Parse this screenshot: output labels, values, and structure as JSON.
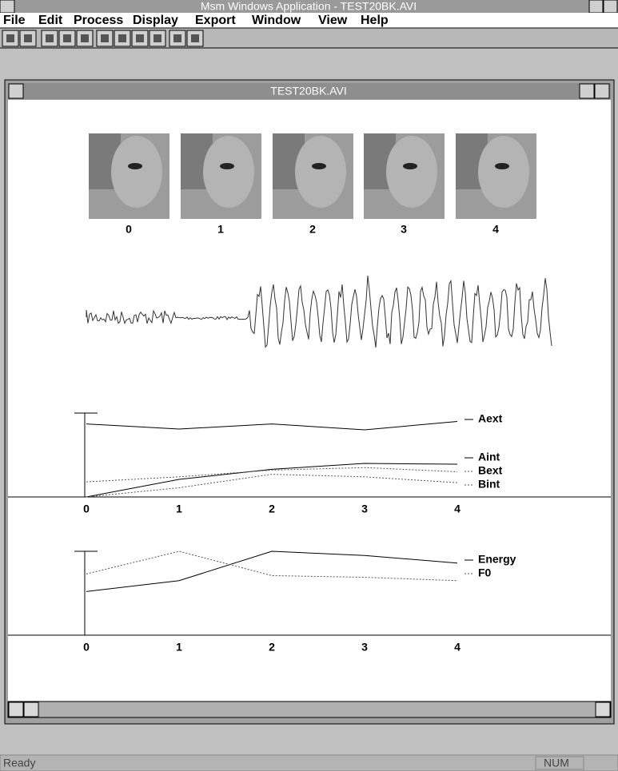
{
  "window": {
    "title": "Msm Windows Application - TEST20BK.AVI",
    "menu": [
      "File",
      "Edit",
      "Process",
      "Display",
      "Export",
      "Window",
      "View",
      "Help"
    ]
  },
  "child": {
    "title": "TEST20BK.AVI"
  },
  "frames": {
    "labels": [
      "0",
      "1",
      "2",
      "3",
      "4"
    ]
  },
  "chart_data": [
    {
      "type": "line",
      "categories": [
        "0",
        "1",
        "2",
        "3",
        "4"
      ],
      "ylim": [
        0,
        1
      ],
      "series": [
        {
          "name": "Aext",
          "color": "#000000",
          "style": "solid",
          "values": [
            0.87,
            0.81,
            0.87,
            0.8,
            0.9
          ]
        },
        {
          "name": "Aint",
          "color": "#000000",
          "style": "solid",
          "values": [
            0,
            0.21,
            0.33,
            0.4,
            0.39
          ]
        },
        {
          "name": "Bext",
          "color": "#555555",
          "style": "dotted",
          "values": [
            0.18,
            0.24,
            0.32,
            0.35,
            0.3
          ]
        },
        {
          "name": "Bint",
          "color": "#555555",
          "style": "dotted",
          "values": [
            0,
            0.11,
            0.27,
            0.24,
            0.17
          ]
        }
      ]
    },
    {
      "type": "line",
      "categories": [
        "0",
        "1",
        "2",
        "3",
        "4"
      ],
      "ylim": [
        0,
        1
      ],
      "series": [
        {
          "name": "Energy",
          "color": "#000000",
          "style": "solid",
          "values": [
            0.52,
            0.65,
            1.0,
            0.95,
            0.86
          ]
        },
        {
          "name": "F0",
          "color": "#555555",
          "style": "dotted",
          "values": [
            0.73,
            1.0,
            0.71,
            0.69,
            0.65
          ]
        }
      ]
    }
  ],
  "status": {
    "left": "Ready",
    "right": "NUM"
  }
}
